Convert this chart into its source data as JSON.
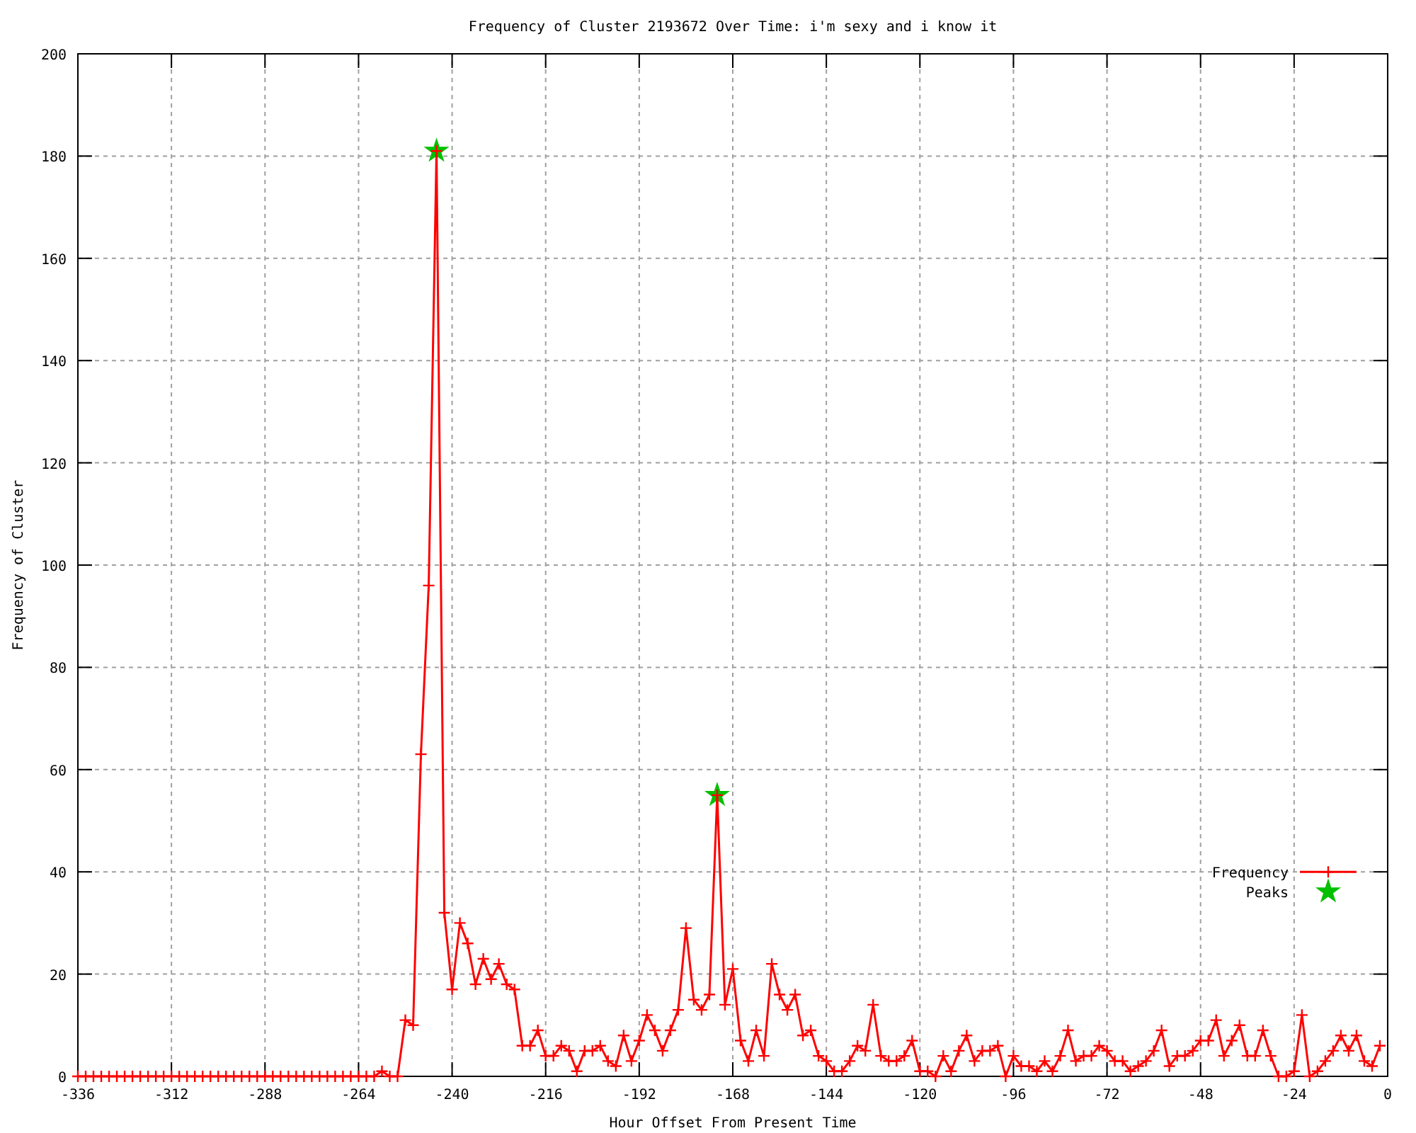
{
  "chart_data": {
    "type": "line",
    "title": "Frequency of Cluster 2193672 Over Time: i'm sexy and i know it",
    "xlabel": "Hour Offset From Present Time",
    "ylabel": "Frequency of Cluster",
    "xlim": [
      -336,
      0
    ],
    "xticks": [
      -336,
      -312,
      -288,
      -264,
      -240,
      -216,
      -192,
      -168,
      -144,
      -120,
      -96,
      -72,
      -48,
      -24,
      0
    ],
    "ylim": [
      0,
      200
    ],
    "yticks": [
      0,
      20,
      40,
      60,
      80,
      100,
      120,
      140,
      160,
      180,
      200
    ],
    "grid": true,
    "legend": "bottom right",
    "series": [
      {
        "name": "Frequency",
        "color": "#ff0000",
        "marker": "cross",
        "line_style": "solid",
        "x": [
          -336,
          -334,
          -332,
          -330,
          -328,
          -326,
          -324,
          -322,
          -320,
          -318,
          -316,
          -314,
          -312,
          -310,
          -308,
          -306,
          -304,
          -302,
          -300,
          -298,
          -296,
          -294,
          -292,
          -290,
          -288,
          -286,
          -284,
          -282,
          -280,
          -278,
          -276,
          -274,
          -272,
          -270,
          -268,
          -266,
          -264,
          -262,
          -260,
          -258,
          -256,
          -254,
          -252,
          -250,
          -248,
          -246,
          -244,
          -242,
          -240,
          -238,
          -236,
          -234,
          -232,
          -230,
          -228,
          -226,
          -224,
          -222,
          -220,
          -218,
          -216,
          -214,
          -212,
          -210,
          -208,
          -206,
          -204,
          -202,
          -200,
          -198,
          -196,
          -194,
          -192,
          -190,
          -188,
          -186,
          -184,
          -182,
          -180,
          -178,
          -176,
          -174,
          -172,
          -170,
          -168,
          -166,
          -164,
          -162,
          -160,
          -158,
          -156,
          -154,
          -152,
          -150,
          -148,
          -146,
          -144,
          -142,
          -140,
          -138,
          -136,
          -134,
          -132,
          -130,
          -128,
          -126,
          -124,
          -122,
          -120,
          -118,
          -116,
          -114,
          -112,
          -110,
          -108,
          -106,
          -104,
          -102,
          -100,
          -98,
          -96,
          -94,
          -92,
          -90,
          -88,
          -86,
          -84,
          -82,
          -80,
          -78,
          -76,
          -74,
          -72,
          -70,
          -68,
          -66,
          -64,
          -62,
          -60,
          -58,
          -56,
          -54,
          -52,
          -50,
          -48,
          -46,
          -44,
          -42,
          -40,
          -38,
          -36,
          -34,
          -32,
          -30,
          -28,
          -26,
          -24,
          -22,
          -20,
          -18,
          -16,
          -14,
          -12,
          -10,
          -8,
          -6,
          -4,
          -2
        ],
        "values": [
          0,
          0,
          0,
          0,
          0,
          0,
          0,
          0,
          0,
          0,
          0,
          0,
          0,
          0,
          0,
          0,
          0,
          0,
          0,
          0,
          0,
          0,
          0,
          0,
          0,
          0,
          0,
          0,
          0,
          0,
          0,
          0,
          0,
          0,
          0,
          0,
          0,
          0,
          0,
          1,
          0,
          0,
          11,
          10,
          63,
          96,
          181,
          32,
          17,
          30,
          26,
          18,
          23,
          19,
          22,
          18,
          17,
          6,
          6,
          9,
          4,
          4,
          6,
          5,
          1,
          5,
          5,
          6,
          3,
          2,
          8,
          3,
          7,
          12,
          9,
          5,
          9,
          13,
          29,
          15,
          13,
          16,
          55,
          14,
          21,
          7,
          3,
          9,
          4,
          22,
          16,
          13,
          16,
          8,
          9,
          4,
          3,
          1,
          1,
          3,
          6,
          5,
          14,
          4,
          3,
          3,
          4,
          7,
          1,
          1,
          0,
          4,
          1,
          5,
          8,
          3,
          5,
          5,
          6,
          0,
          4,
          2,
          2,
          1,
          3,
          1,
          4,
          9,
          3,
          4,
          4,
          6,
          5,
          3,
          3,
          1,
          2,
          3,
          5,
          9,
          2,
          4,
          4,
          5,
          7,
          7,
          11,
          4,
          7,
          10,
          4,
          4,
          9,
          4,
          0,
          0,
          1,
          12,
          0,
          1,
          3,
          5,
          8,
          5,
          8,
          3,
          2,
          6
        ]
      },
      {
        "name": "Peaks",
        "type": "scatter",
        "color": "#00c000",
        "marker": "star",
        "x": [
          -244,
          -172
        ],
        "values": [
          181,
          55
        ]
      }
    ]
  }
}
